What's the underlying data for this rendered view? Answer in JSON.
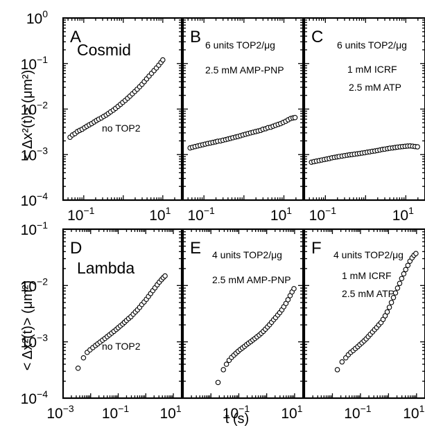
{
  "figure": {
    "ylabel": "< Δx²(t)> (μm²)",
    "xlabel": "t (s)"
  },
  "chart_data": [
    {
      "type": "scatter",
      "panel": "A",
      "xscale": "log",
      "yscale": "log",
      "xlim": [
        0.03,
        30
      ],
      "ylim": [
        0.0001,
        1
      ],
      "xticks": [
        "10",
        "10"
      ],
      "xtick_exponents": [
        "−1",
        "1"
      ],
      "yticks": [
        "10",
        "10",
        "10",
        "10",
        "10"
      ],
      "ytick_exponents": [
        "0",
        "−1",
        "−2",
        "−3",
        "−4"
      ],
      "annotations": [
        "Cosmid",
        "no TOP2"
      ],
      "series": [
        {
          "x": [
            0.045,
            0.052,
            0.06,
            0.069,
            0.079,
            0.091,
            0.105,
            0.12,
            0.138,
            0.159,
            0.183,
            0.21,
            0.24,
            0.28,
            0.32,
            0.37,
            0.42,
            0.48,
            0.56,
            0.64,
            0.74,
            0.85,
            0.97,
            1.12,
            1.29,
            1.48,
            1.7,
            1.96,
            2.25,
            2.6,
            2.98,
            3.4,
            3.9,
            4.5,
            5.2,
            6.0,
            6.9,
            7.9,
            9.0,
            10.0
          ],
          "y": [
            0.0024,
            0.0027,
            0.0029,
            0.0032,
            0.0034,
            0.0036,
            0.0039,
            0.0042,
            0.0045,
            0.0048,
            0.0052,
            0.0056,
            0.006,
            0.0064,
            0.0069,
            0.0074,
            0.008,
            0.0087,
            0.0095,
            0.0104,
            0.0115,
            0.0127,
            0.014,
            0.0155,
            0.0173,
            0.0193,
            0.0216,
            0.0243,
            0.0273,
            0.031,
            0.035,
            0.04,
            0.046,
            0.053,
            0.061,
            0.07,
            0.08,
            0.092,
            0.106,
            0.12
          ]
        }
      ]
    },
    {
      "type": "scatter",
      "panel": "B",
      "xscale": "log",
      "yscale": "log",
      "xlim": [
        0.03,
        30
      ],
      "ylim": [
        0.0001,
        1
      ],
      "xticks": [
        "10",
        "10"
      ],
      "xtick_exponents": [
        "−1",
        "1"
      ],
      "annotations": [
        "6 units TOP2/μg",
        "2.5 mM AMP-PNP"
      ],
      "series": [
        {
          "x": [
            0.045,
            0.052,
            0.06,
            0.07,
            0.081,
            0.094,
            0.108,
            0.125,
            0.145,
            0.168,
            0.194,
            0.22,
            0.26,
            0.3,
            0.35,
            0.4,
            0.46,
            0.53,
            0.62,
            0.71,
            0.82,
            0.95,
            1.1,
            1.27,
            1.47,
            1.7,
            1.96,
            2.27,
            2.62,
            3.0,
            3.5,
            4.0,
            4.7,
            5.4,
            6.2,
            7.2,
            8.3,
            9.6,
            11.1,
            12.8,
            14.8,
            17.0,
            19.0
          ],
          "y": [
            0.0014,
            0.00145,
            0.0015,
            0.00155,
            0.0016,
            0.00165,
            0.0017,
            0.00175,
            0.0018,
            0.00185,
            0.0019,
            0.00196,
            0.002,
            0.00207,
            0.00213,
            0.0022,
            0.00227,
            0.00235,
            0.00243,
            0.0025,
            0.0026,
            0.0027,
            0.0028,
            0.0029,
            0.003,
            0.0031,
            0.0032,
            0.0033,
            0.0034,
            0.0036,
            0.0037,
            0.0039,
            0.004,
            0.0042,
            0.0044,
            0.0046,
            0.0048,
            0.0051,
            0.0054,
            0.0058,
            0.0062,
            0.0064,
            0.0065
          ]
        }
      ]
    },
    {
      "type": "scatter",
      "panel": "C",
      "xscale": "log",
      "yscale": "log",
      "xlim": [
        0.03,
        30
      ],
      "ylim": [
        0.0001,
        1
      ],
      "xticks": [
        "10",
        "10"
      ],
      "xtick_exponents": [
        "−1",
        "1"
      ],
      "annotations": [
        "6 units TOP2/μg",
        "1 mM ICRF",
        "2.5 mM ATP"
      ],
      "series": [
        {
          "x": [
            0.045,
            0.052,
            0.06,
            0.07,
            0.081,
            0.094,
            0.108,
            0.125,
            0.145,
            0.168,
            0.194,
            0.22,
            0.26,
            0.3,
            0.35,
            0.4,
            0.46,
            0.53,
            0.62,
            0.71,
            0.82,
            0.95,
            1.1,
            1.27,
            1.47,
            1.7,
            1.96,
            2.27,
            2.62,
            3.0,
            3.5,
            4.0,
            4.7,
            5.4,
            6.2,
            7.2,
            8.3,
            9.6,
            11.1,
            12.8,
            14.8,
            17.0,
            19.5
          ],
          "y": [
            0.00068,
            0.0007,
            0.00072,
            0.00074,
            0.00076,
            0.00078,
            0.0008,
            0.00082,
            0.00085,
            0.00087,
            0.00089,
            0.00091,
            0.00093,
            0.00095,
            0.00097,
            0.00099,
            0.001,
            0.00102,
            0.00104,
            0.00106,
            0.00108,
            0.0011,
            0.00113,
            0.00115,
            0.00118,
            0.0012,
            0.00123,
            0.00126,
            0.0013,
            0.00132,
            0.00135,
            0.00138,
            0.0014,
            0.00143,
            0.00146,
            0.00148,
            0.0015,
            0.00152,
            0.00154,
            0.00155,
            0.00153,
            0.0015,
            0.00148
          ]
        }
      ]
    },
    {
      "type": "scatter",
      "panel": "D",
      "xscale": "log",
      "yscale": "log",
      "xlim": [
        0.001,
        20
      ],
      "ylim": [
        0.0001,
        0.1
      ],
      "xticks": [
        "10",
        "10",
        "10"
      ],
      "xtick_exponents": [
        "−3",
        "−1",
        "1"
      ],
      "yticks": [
        "10",
        "10",
        "10",
        "10"
      ],
      "ytick_exponents": [
        "−1",
        "−2",
        "−3",
        "−4"
      ],
      "annotations": [
        "Lambda",
        "no TOP2"
      ],
      "series": [
        {
          "x": [
            0.0035,
            0.0055,
            0.0075,
            0.0095,
            0.012,
            0.015,
            0.018,
            0.022,
            0.027,
            0.033,
            0.04,
            0.048,
            0.058,
            0.07,
            0.085,
            0.1,
            0.12,
            0.145,
            0.17,
            0.2,
            0.24,
            0.29,
            0.35,
            0.42,
            0.5,
            0.6,
            0.72,
            0.87,
            1.05,
            1.25,
            1.5,
            1.8,
            2.15,
            2.6,
            3.1,
            3.7,
            4.3,
            5.0
          ],
          "y": [
            0.00034,
            0.00052,
            0.00065,
            0.00072,
            0.00079,
            0.00086,
            0.00092,
            0.00099,
            0.00107,
            0.00115,
            0.00124,
            0.00133,
            0.00143,
            0.00154,
            0.00166,
            0.00178,
            0.00192,
            0.00207,
            0.00223,
            0.0024,
            0.0026,
            0.0028,
            0.0031,
            0.0034,
            0.0037,
            0.0041,
            0.0046,
            0.0051,
            0.0057,
            0.0064,
            0.0072,
            0.0081,
            0.0091,
            0.0103,
            0.0115,
            0.0127,
            0.0138,
            0.0148
          ]
        }
      ]
    },
    {
      "type": "scatter",
      "panel": "E",
      "xscale": "log",
      "yscale": "log",
      "xlim": [
        0.001,
        20
      ],
      "ylim": [
        0.0001,
        0.1
      ],
      "xticks": [
        "10",
        "10"
      ],
      "xtick_exponents": [
        "−1",
        "1"
      ],
      "annotations": [
        "4 units TOP2/μg",
        "2.5 mM AMP-PNP"
      ],
      "series": [
        {
          "x": [
            0.018,
            0.028,
            0.036,
            0.045,
            0.055,
            0.067,
            0.08,
            0.095,
            0.113,
            0.135,
            0.16,
            0.19,
            0.225,
            0.27,
            0.32,
            0.38,
            0.45,
            0.54,
            0.64,
            0.76,
            0.9,
            1.07,
            1.27,
            1.5,
            1.78,
            2.1,
            2.5,
            2.95,
            3.5,
            4.1,
            4.9,
            5.8,
            6.9,
            8.1,
            9.5
          ],
          "y": [
            0.00019,
            0.00032,
            0.0004,
            0.00047,
            0.00053,
            0.00058,
            0.00063,
            0.00068,
            0.00073,
            0.00078,
            0.00083,
            0.00089,
            0.00095,
            0.00101,
            0.00108,
            0.00115,
            0.00123,
            0.00132,
            0.00142,
            0.00154,
            0.00168,
            0.00184,
            0.00202,
            0.00223,
            0.00247,
            0.0027,
            0.003,
            0.0033,
            0.0037,
            0.0042,
            0.0048,
            0.0056,
            0.0066,
            0.0077,
            0.0088
          ]
        }
      ]
    },
    {
      "type": "scatter",
      "panel": "F",
      "xscale": "log",
      "yscale": "log",
      "xlim": [
        0.001,
        20
      ],
      "ylim": [
        0.0001,
        0.1
      ],
      "xticks": [
        "10",
        "10"
      ],
      "xtick_exponents": [
        "−1",
        "1"
      ],
      "annotations": [
        "4 units TOP2/μg",
        "1 mM ICRF",
        "2.5 mM ATP"
      ],
      "series": [
        {
          "x": [
            0.015,
            0.022,
            0.03,
            0.037,
            0.045,
            0.055,
            0.066,
            0.08,
            0.095,
            0.113,
            0.135,
            0.16,
            0.19,
            0.225,
            0.27,
            0.32,
            0.38,
            0.45,
            0.54,
            0.64,
            0.76,
            0.9,
            1.07,
            1.27,
            1.5,
            1.78,
            2.1,
            2.5,
            2.95,
            3.5,
            4.1,
            4.9,
            5.8,
            6.9,
            8.1,
            9.5
          ],
          "y": [
            0.00032,
            0.00044,
            0.00052,
            0.00059,
            0.00065,
            0.0007,
            0.00076,
            0.00082,
            0.00089,
            0.00096,
            0.00104,
            0.00113,
            0.00124,
            0.00136,
            0.0015,
            0.00165,
            0.0018,
            0.002,
            0.0022,
            0.0025,
            0.0029,
            0.0034,
            0.0041,
            0.005,
            0.0061,
            0.0074,
            0.009,
            0.0109,
            0.0133,
            0.0161,
            0.0192,
            0.0228,
            0.027,
            0.031,
            0.0345,
            0.037
          ]
        }
      ]
    }
  ]
}
